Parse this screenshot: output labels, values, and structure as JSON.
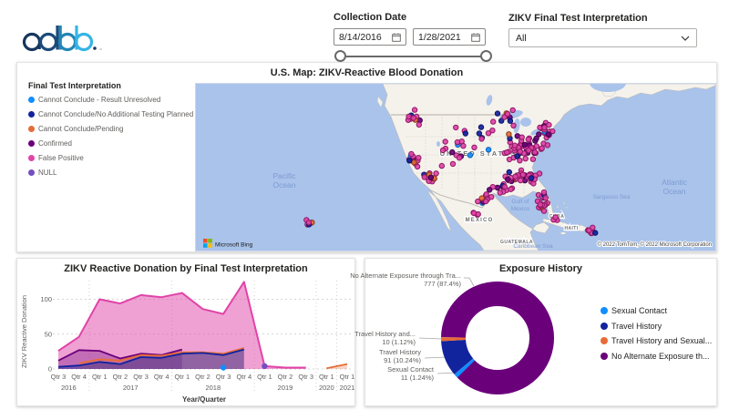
{
  "colors": {
    "blue": "#118DFF",
    "navy": "#12239E",
    "orange": "#E66C37",
    "dark_purple": "#6B007B",
    "pink": "#E044A7",
    "medium_purple": "#744EC2"
  },
  "header": {
    "logo": "adbb",
    "collection_date": {
      "label": "Collection Date",
      "start_value": "8/14/2016",
      "end_value": "1/28/2021"
    },
    "zikv_filter": {
      "label": "ZIKV Final Test Interpretation",
      "value": "All"
    }
  },
  "map_panel": {
    "title": "U.S. Map: ZIKV-Reactive Blood Donation",
    "legend": {
      "title": "Final Test Interpretation",
      "items": [
        {
          "label": "Cannot Conclude - Result Unresolved",
          "color": "#118DFF"
        },
        {
          "label": "Cannot Conclude/No Additional Testing Planned",
          "color": "#12239E"
        },
        {
          "label": "Cannot Conclude/Pending",
          "color": "#E66C37"
        },
        {
          "label": "Confirmed",
          "color": "#6B007B"
        },
        {
          "label": "False Positive",
          "color": "#E044A7"
        },
        {
          "label": "NULL",
          "color": "#744EC2"
        }
      ]
    },
    "geo_labels": {
      "united_states": "UNITED STATES",
      "mexico": "MEXICO",
      "cuba": "CUBA",
      "haiti": "HAITI",
      "guatemala": "GUATEMALA",
      "pacific_line1": "Pacific",
      "pacific_line2": "Ocean",
      "atlantic_line1": "Atlantic",
      "atlantic_line2": "Ocean",
      "gulf_line1": "Gulf of",
      "gulf_line2": "Mexico",
      "sargasso": "Sargasso Sea",
      "caribbean": "Caribbean Sea"
    },
    "bing_logo": "Microsoft Bing",
    "attribution": "© 2022 TomTom, © 2022 Microsoft Corporation",
    "dot_clusters": [
      [
        362,
        70,
        26,
        18,
        55
      ],
      [
        360,
        103,
        22,
        11,
        30
      ],
      [
        381,
        131,
        7,
        14,
        20
      ],
      [
        385,
        52,
        12,
        10,
        18
      ],
      [
        340,
        115,
        16,
        7,
        10
      ],
      [
        318,
        122,
        13,
        11,
        12
      ],
      [
        307,
        143,
        4,
        4,
        4
      ],
      [
        310,
        60,
        30,
        22,
        16
      ],
      [
        340,
        38,
        18,
        10,
        10
      ],
      [
        272,
        72,
        22,
        22,
        9
      ],
      [
        240,
        82,
        9,
        14,
        14
      ],
      [
        257,
        103,
        9,
        7,
        14
      ],
      [
        238,
        40,
        10,
        12,
        11
      ],
      [
        126,
        152,
        9,
        7,
        6
      ],
      [
        434,
        161,
        5,
        4,
        9
      ],
      [
        395,
        148,
        8,
        4,
        3
      ]
    ],
    "dot_colors": [
      [
        "#E044A7",
        0.68
      ],
      [
        "#6B007B",
        0.16
      ],
      [
        "#12239E",
        0.09
      ],
      [
        "#E66C37",
        0.04
      ],
      [
        "#118DFF",
        0.03
      ]
    ]
  },
  "chart_data": [
    {
      "type": "area",
      "title": "ZIKV Reactive Donation by Final Test Interpretation",
      "xlabel": "Year/Quarter",
      "ylabel": "ZIKV Reactive Donation",
      "y_ticks": [
        0,
        50,
        100
      ],
      "ylim": [
        0,
        135
      ],
      "grid": true,
      "categories": [
        "Qtr 3",
        "Qtr 4",
        "Qtr 1",
        "Qtr 2",
        "Qtr 3",
        "Qtr 4",
        "Qtr 1",
        "Qtr 2",
        "Qtr 3",
        "Qtr 4",
        "Qtr 1",
        "Qtr 2",
        "Qtr 3",
        "Qtr 1",
        "Qtr 1"
      ],
      "year_groups": [
        {
          "label": "2016",
          "from": 0,
          "to": 1
        },
        {
          "label": "2017",
          "from": 2,
          "to": 5
        },
        {
          "label": "2018",
          "from": 6,
          "to": 9
        },
        {
          "label": "2019",
          "from": 10,
          "to": 12
        },
        {
          "label": "2020",
          "from": 13,
          "to": 13
        },
        {
          "label": "2021",
          "from": 14,
          "to": 14
        }
      ],
      "series": [
        {
          "name": "False Positive",
          "color": "#E044A7",
          "fill_opacity": 0.5,
          "stroke_width": 2,
          "values": [
            26,
            46,
            100,
            94,
            106,
            103,
            109,
            86,
            79,
            125,
            4,
            2,
            2,
            null,
            null
          ]
        },
        {
          "name": "Confirmed",
          "color": "#6B007B",
          "fill_opacity": 0.32,
          "stroke_width": 1.8,
          "values": [
            12,
            27,
            26,
            15,
            22,
            20,
            28,
            null,
            null,
            null,
            null,
            null,
            null,
            null,
            null
          ]
        },
        {
          "name": "Cannot Conclude/Pending",
          "color": "#E66C37",
          "fill_opacity": 0.28,
          "stroke_width": 1.8,
          "values": [
            null,
            8,
            14,
            12,
            20,
            19,
            24,
            24,
            22,
            30,
            null,
            null,
            null,
            1,
            7
          ]
        },
        {
          "name": "Cannot Conclude/No Additional Testing Planned",
          "color": "#12239E",
          "fill_opacity": 0.42,
          "stroke_width": 1.8,
          "values": [
            3,
            5,
            10,
            7,
            17,
            16,
            22,
            23,
            20,
            28,
            null,
            null,
            null,
            null,
            null
          ]
        }
      ],
      "point_markers": [
        {
          "name": "Cannot Conclude - Result Unresolved",
          "color": "#118DFF",
          "index": 8,
          "value": 2
        },
        {
          "name": "NULL",
          "color": "#744EC2",
          "index": 10,
          "value": 4
        }
      ]
    },
    {
      "type": "donut",
      "title": "Exposure History",
      "start_angle": 270.8,
      "slices": [
        {
          "label": "No Alternate Exposure th...",
          "callout_label": "No Alternate Exposure through Tra...",
          "value": 777,
          "display": "777 (87.4%)",
          "color": "#6B007B"
        },
        {
          "label": "Sexual Contact",
          "callout_label": "Sexual Contact",
          "value": 11,
          "display": "11 (1.24%)",
          "color": "#118DFF"
        },
        {
          "label": "Travel History",
          "callout_label": "Travel History",
          "value": 91,
          "display": "91 (10.24%)",
          "color": "#12239E"
        },
        {
          "label": "Travel History and Sexual...",
          "callout_label": "Travel History and...",
          "value": 10,
          "display": "10 (1.12%)",
          "color": "#E66C37"
        }
      ]
    }
  ]
}
